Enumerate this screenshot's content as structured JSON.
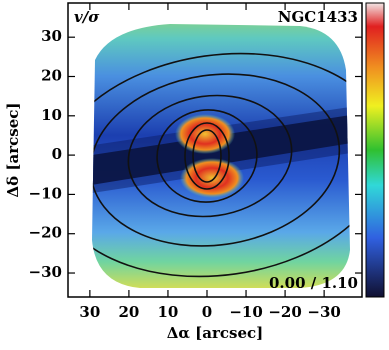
{
  "chart_data": {
    "type": "map",
    "title": "v/σ",
    "object_label": "NGC1433",
    "range_label": "0.00 / 1.10",
    "xlabel": "Δα [arcsec]",
    "ylabel": "Δδ [arcsec]",
    "xlim": [
      35.6,
      -39.7
    ],
    "ylim": [
      -36.1,
      38.7
    ],
    "xticks": [
      30,
      20,
      10,
      0,
      {
        "value": -10,
        "label": "−10"
      },
      {
        "value": -20,
        "label": "−20"
      },
      {
        "value": -30,
        "label": "−30"
      }
    ],
    "yticks": [
      30,
      20,
      10,
      0,
      {
        "value": -10,
        "label": "−10"
      },
      {
        "value": -20,
        "label": "−20"
      },
      {
        "value": -30,
        "label": "−30"
      }
    ]
  }
}
